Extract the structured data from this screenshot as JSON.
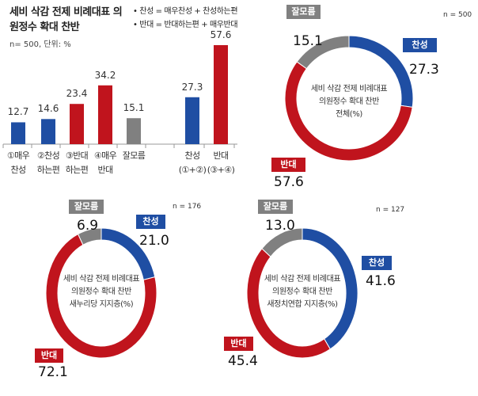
{
  "chart_data": [
    {
      "type": "bar",
      "title": "세비 삭감 전제 비례대표 의원정수 확대 찬반",
      "subtitle": "n= 500, 단위: %",
      "legend": [
        "• 찬성 = 매우찬성 + 찬성하는편",
        "• 반대 = 반대하는편 + 매우반대"
      ],
      "categories": [
        [
          "①매우",
          "찬성"
        ],
        [
          "②찬성",
          "하는편"
        ],
        [
          "③반대",
          "하는편"
        ],
        [
          "④매우",
          "반대"
        ],
        [
          "잘모름",
          ""
        ],
        [
          "찬성",
          "(①+②)"
        ],
        [
          "반대",
          "(③+④)"
        ]
      ],
      "values": [
        12.7,
        14.6,
        23.4,
        34.2,
        15.1,
        27.3,
        57.6
      ],
      "value_labels": [
        "12.7",
        "14.6",
        "23.4",
        "34.2",
        "15.1",
        "27.3",
        "57.6"
      ],
      "colors": [
        "#1f4ea3",
        "#1f4ea3",
        "#c0141d",
        "#c0141d",
        "#808080",
        "#1f4ea3",
        "#c0141d"
      ],
      "ylim": [
        0,
        60
      ]
    },
    {
      "type": "pie",
      "variant": "donut",
      "n_label": "n = 500",
      "center_text": [
        "세비 삭감 전제 비례대표",
        "의원정수 확대 찬반",
        "전체(%)"
      ],
      "slices": [
        {
          "name": "찬성",
          "value": 27.3,
          "label": "27.3",
          "color": "#1f4ea3"
        },
        {
          "name": "반대",
          "value": 57.6,
          "label": "57.6",
          "color": "#c0141d"
        },
        {
          "name": "잘모름",
          "value": 15.1,
          "label": "15.1",
          "color": "#808080"
        }
      ]
    },
    {
      "type": "pie",
      "variant": "donut",
      "n_label": "n = 176",
      "center_text": [
        "세비 삭감 전제 비례대표",
        "의원정수 확대 찬반",
        "새누리당 지지층(%)"
      ],
      "slices": [
        {
          "name": "찬성",
          "value": 21.0,
          "label": "21.0",
          "color": "#1f4ea3"
        },
        {
          "name": "반대",
          "value": 72.1,
          "label": "72.1",
          "color": "#c0141d"
        },
        {
          "name": "잘모름",
          "value": 6.9,
          "label": "6.9",
          "color": "#808080"
        }
      ]
    },
    {
      "type": "pie",
      "variant": "donut",
      "n_label": "n = 127",
      "center_text": [
        "세비 삭감 전제 비례대표",
        "의원정수 확대 찬반",
        "새정치연합 지지층(%)"
      ],
      "slices": [
        {
          "name": "찬성",
          "value": 41.6,
          "label": "41.6",
          "color": "#1f4ea3"
        },
        {
          "name": "반대",
          "value": 45.4,
          "label": "45.4",
          "color": "#c0141d"
        },
        {
          "name": "잘모름",
          "value": 13.0,
          "label": "13.0",
          "color": "#808080"
        }
      ]
    }
  ]
}
